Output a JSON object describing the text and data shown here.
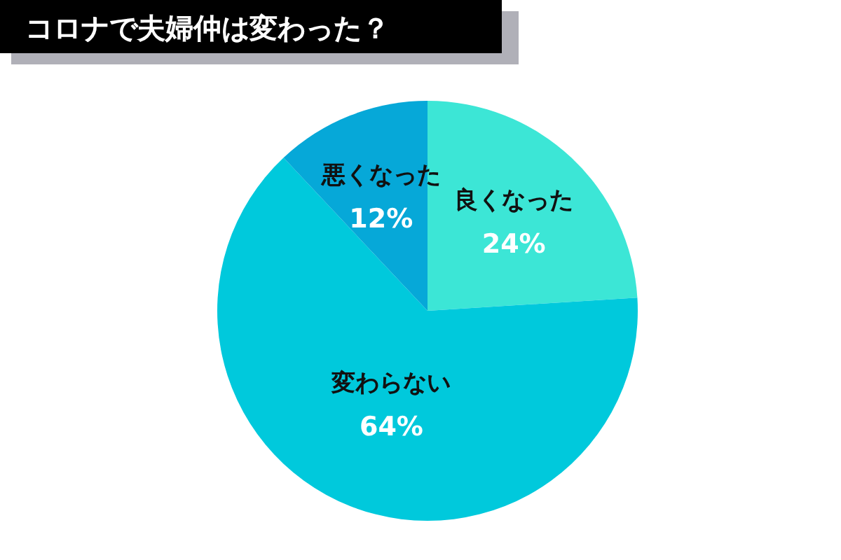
{
  "chart_data": {
    "type": "pie",
    "title": "コロナで夫婦仲は変わった？",
    "categories": [
      "良くなった",
      "変わらない",
      "悪くなった"
    ],
    "values": [
      24,
      64,
      12
    ],
    "colors": [
      "#3ce6d6",
      "#00c9dc",
      "#06a8d8"
    ],
    "value_labels": [
      "24%",
      "64%",
      "12%"
    ]
  }
}
